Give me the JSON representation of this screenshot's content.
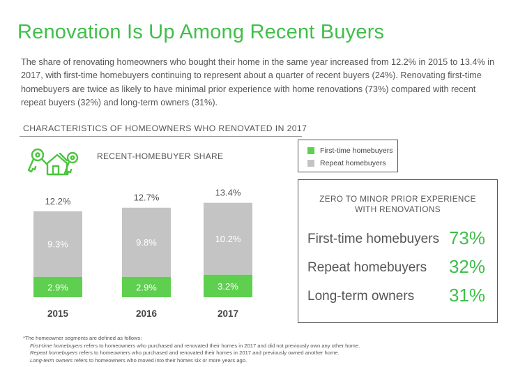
{
  "title": "Renovation Is Up Among Recent Buyers",
  "intro": "The share of renovating homeowners who bought their home in the same year increased from 12.2% in 2015 to 13.4% in 2017, with first-time homebuyers continuing to represent about a quarter of recent buyers (24%). Renovating first-time homebuyers are twice as likely to have minimal prior experience with home renovations (73%) compared with recent repeat buyers (32%) and long-term owners (31%).",
  "section_title": "CHARACTERISTICS OF HOMEOWNERS WHO RENOVATED IN 2017",
  "icons": {
    "keys": "house-keys-icon"
  },
  "colors": {
    "green": "#5ecf4f",
    "gray": "#c4c4c4",
    "accent_text": "#3fbf4a"
  },
  "chart_data": {
    "type": "bar",
    "stacked": true,
    "title": "RECENT-HOMEBUYER SHARE",
    "categories": [
      "2015",
      "2016",
      "2017"
    ],
    "series": [
      {
        "name": "First-time homebuyers",
        "values": [
          2.9,
          2.9,
          3.2
        ],
        "labels": [
          "2.9%",
          "2.9%",
          "3.2%"
        ],
        "color": "#5ecf4f"
      },
      {
        "name": "Repeat homebuyers",
        "values": [
          9.3,
          9.8,
          10.2
        ],
        "labels": [
          "9.3%",
          "9.8%",
          "10.2%"
        ],
        "color": "#c4c4c4"
      }
    ],
    "totals": [
      "12.2%",
      "12.7%",
      "13.4%"
    ],
    "ylim": [
      0,
      13.4
    ]
  },
  "legend": {
    "items": [
      {
        "label": "First-time homebuyers",
        "color": "#5ecf4f"
      },
      {
        "label": "Repeat homebuyers",
        "color": "#c4c4c4"
      }
    ]
  },
  "experience": {
    "title": "ZERO TO MINOR PRIOR EXPERIENCE WITH RENOVATIONS",
    "rows": [
      {
        "label": "First-time homebuyers",
        "value": "73%"
      },
      {
        "label": "Repeat homebuyers",
        "value": "32%"
      },
      {
        "label": "Long-term owners",
        "value": "31%"
      }
    ]
  },
  "footnotes": {
    "intro": "*The homeowner segments are defined as follows:",
    "items": [
      {
        "term": "First-time homebuyers",
        "text": " refers to homeowners who purchased and renovated their homes in 2017 and did not previously own any other home."
      },
      {
        "term": "Repeat homebuyers",
        "text": " refers to homeowners who purchased and renovated their homes in 2017 and previously owned another home."
      },
      {
        "term": "Long-term owners",
        "text": " refers to homeowners who moved into their homes six or more years ago."
      }
    ]
  }
}
